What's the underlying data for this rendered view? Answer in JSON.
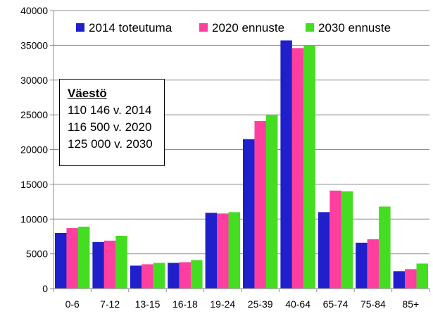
{
  "chart_data": {
    "type": "bar",
    "title": "",
    "xlabel": "",
    "ylabel": "",
    "ylim": [
      0,
      40000
    ],
    "yticks": [
      0,
      5000,
      10000,
      15000,
      20000,
      25000,
      30000,
      35000,
      40000
    ],
    "grid": true,
    "legend_position": "top",
    "categories": [
      "0-6",
      "7-12",
      "13-15",
      "16-18",
      "19-24",
      "25-39",
      "40-64",
      "65-74",
      "75-84",
      "85+"
    ],
    "series": [
      {
        "name": "2014 toteutuma",
        "color": "#1f1fcc",
        "values": [
          8000,
          6700,
          3300,
          3700,
          10900,
          21500,
          35700,
          11000,
          6600,
          2500
        ]
      },
      {
        "name": "2020 ennuste",
        "color": "#ff3fa0",
        "values": [
          8700,
          6900,
          3500,
          3800,
          10800,
          24100,
          34600,
          14100,
          7100,
          2800
        ]
      },
      {
        "name": "2030 ennuste",
        "color": "#44dd22",
        "values": [
          8900,
          7600,
          3700,
          4100,
          11000,
          25000,
          35000,
          14000,
          11800,
          3600
        ]
      }
    ]
  },
  "infobox": {
    "heading": "Väestö",
    "lines": [
      "110 146 v. 2014",
      "116 500 v. 2020",
      "125 000 v. 2030"
    ]
  }
}
